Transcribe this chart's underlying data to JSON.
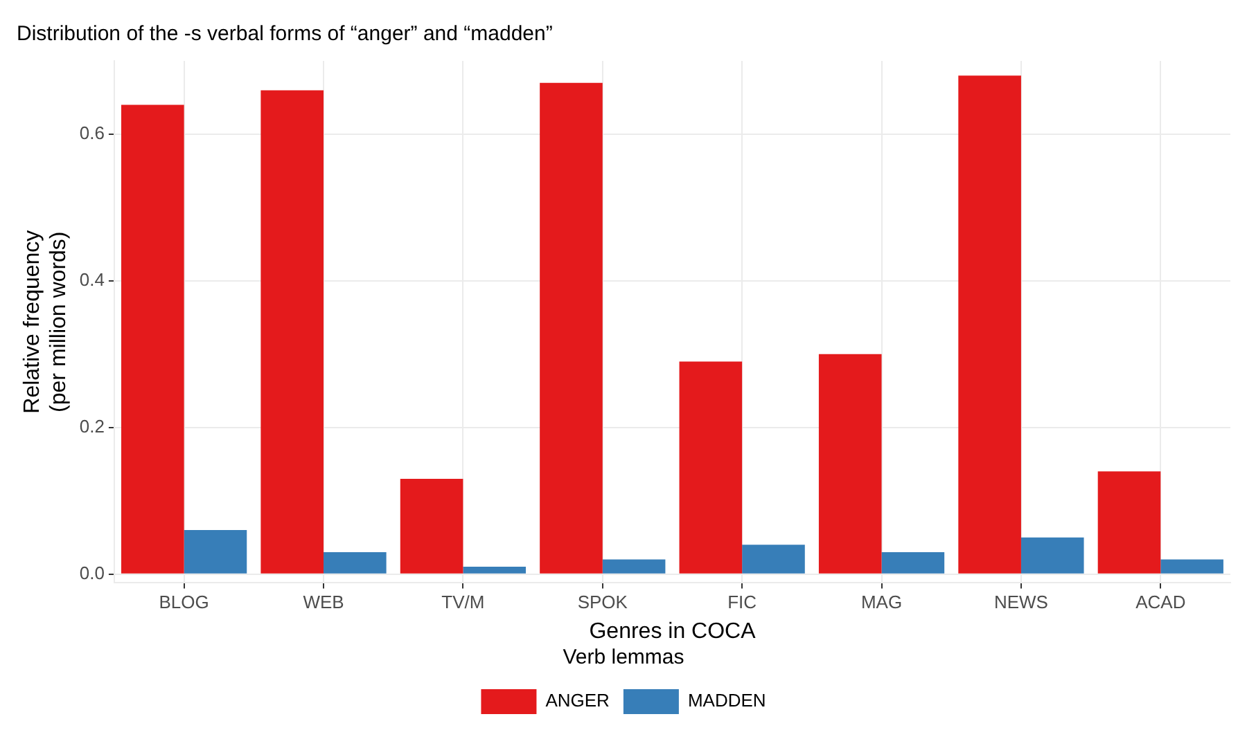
{
  "chart_data": {
    "type": "bar",
    "title": "Distribution of the -s verbal forms of “anger” and “madden”",
    "xlabel": "Genres in COCA",
    "ylabel": "Relative frequency\n(per million words)",
    "legend_title": "Verb lemmas",
    "legend": "bottom",
    "grid": true,
    "categories": [
      "BLOG",
      "WEB",
      "TV/M",
      "SPOK",
      "FIC",
      "MAG",
      "NEWS",
      "ACAD"
    ],
    "series": [
      {
        "name": "ANGER",
        "color": "#e41a1c",
        "values": [
          0.64,
          0.66,
          0.13,
          0.67,
          0.29,
          0.3,
          0.68,
          0.14
        ]
      },
      {
        "name": "MADDEN",
        "color": "#377eb8",
        "values": [
          0.06,
          0.03,
          0.01,
          0.02,
          0.04,
          0.03,
          0.05,
          0.02
        ]
      }
    ],
    "ylim": [
      -0.012,
      0.7
    ],
    "yticks": [
      {
        "value": 0,
        "label": "0.0"
      },
      0.2,
      0.4,
      0.6
    ]
  }
}
